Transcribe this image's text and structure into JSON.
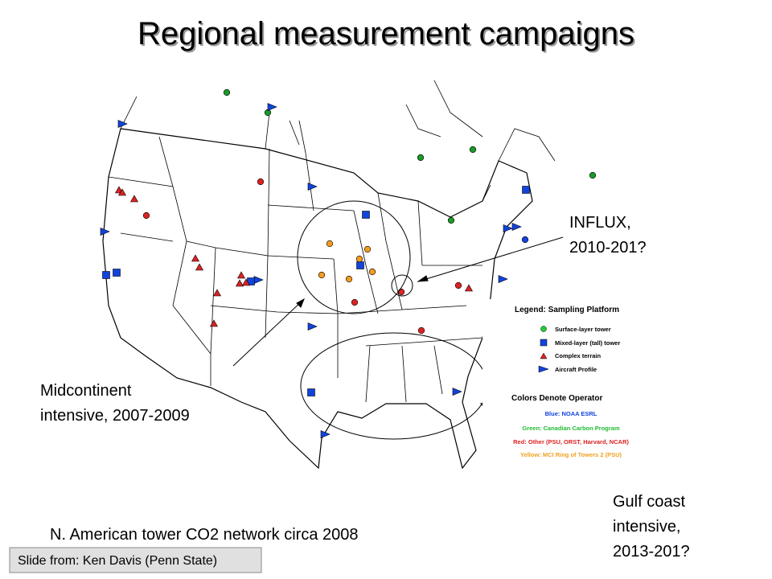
{
  "title": "Regional measurement campaigns",
  "annotations": [
    {
      "lines": [
        "INFLUX,",
        "2010-201?"
      ]
    },
    {
      "lines": [
        "Midcontinent",
        "intensive, 2007-2009"
      ]
    },
    {
      "lines": [
        "Gulf coast",
        "intensive,",
        "2013-201?"
      ]
    }
  ],
  "caption": "N. American tower CO2 network circa 2008",
  "credit": "Slide from: Ken Davis (Penn State)",
  "legend": {
    "title": "Legend: Sampling Platform",
    "items": [
      "Surface-layer tower",
      "Mixed-layer (tall) tower",
      "Complex terrain",
      "Aircraft Profile"
    ],
    "colors_title": "Colors Denote Operator",
    "colors": [
      "Blue: NOAA ESRL",
      "Green: Canadian Carbon Program",
      "Red: Other (PSU, ORST, Harvard, NCAR)",
      "Yellow: MCI Ring of Towers 2 (PSU)"
    ]
  }
}
